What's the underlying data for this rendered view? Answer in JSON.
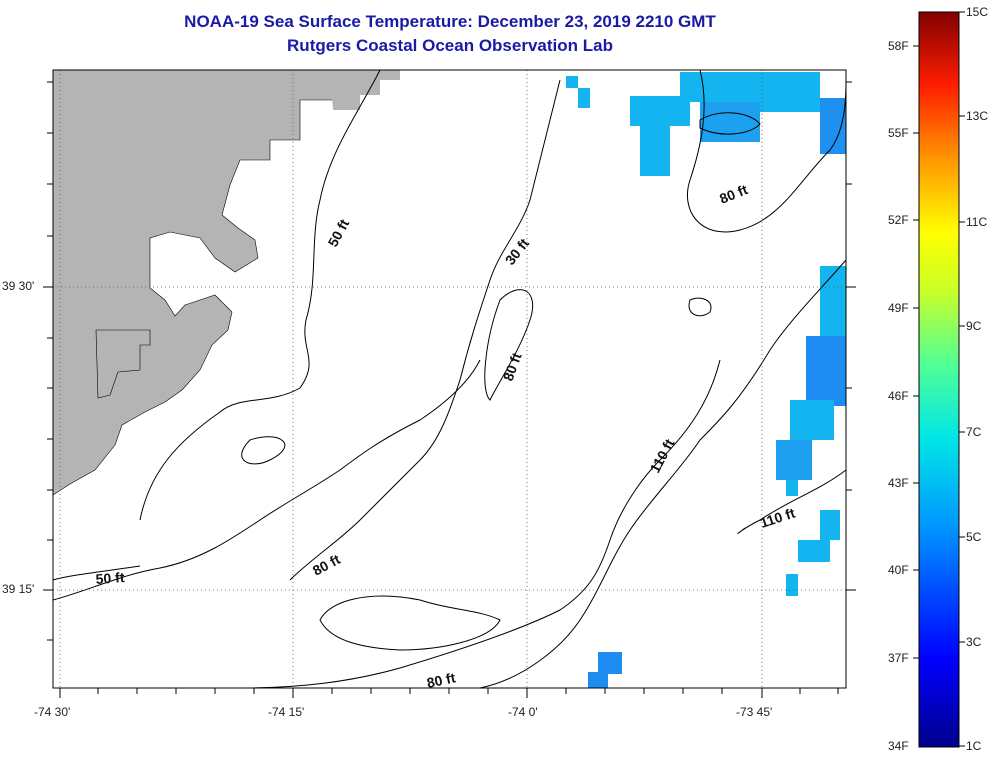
{
  "header": {
    "title": "NOAA-19 Sea Surface Temperature:  December 23, 2019 2210 GMT",
    "subtitle": "Rutgers Coastal Ocean Observation Lab"
  },
  "axes": {
    "x_labels": [
      "-74 30'",
      "-74 15'",
      "-74 0'",
      "-73 45'"
    ],
    "y_labels": [
      "39 30'",
      "39 15'"
    ]
  },
  "contour_labels": [
    "50 ft",
    "30 ft",
    "80 ft",
    "80 ft",
    "110 ft",
    "110 ft",
    "80 ft",
    "50 ft",
    "80 ft"
  ],
  "colorbar": {
    "fahrenheit": [
      "58F",
      "55F",
      "52F",
      "49F",
      "46F",
      "43F",
      "40F",
      "37F",
      "34F"
    ],
    "celsius": [
      "15C",
      "13C",
      "11C",
      "9C",
      "7C",
      "5C",
      "3C",
      "1C"
    ]
  },
  "colors": {
    "land": "#b4b4b4",
    "water_cold": "#1e8cf0",
    "water_cool": "#14b4f0",
    "title": "#1a1aa6"
  }
}
